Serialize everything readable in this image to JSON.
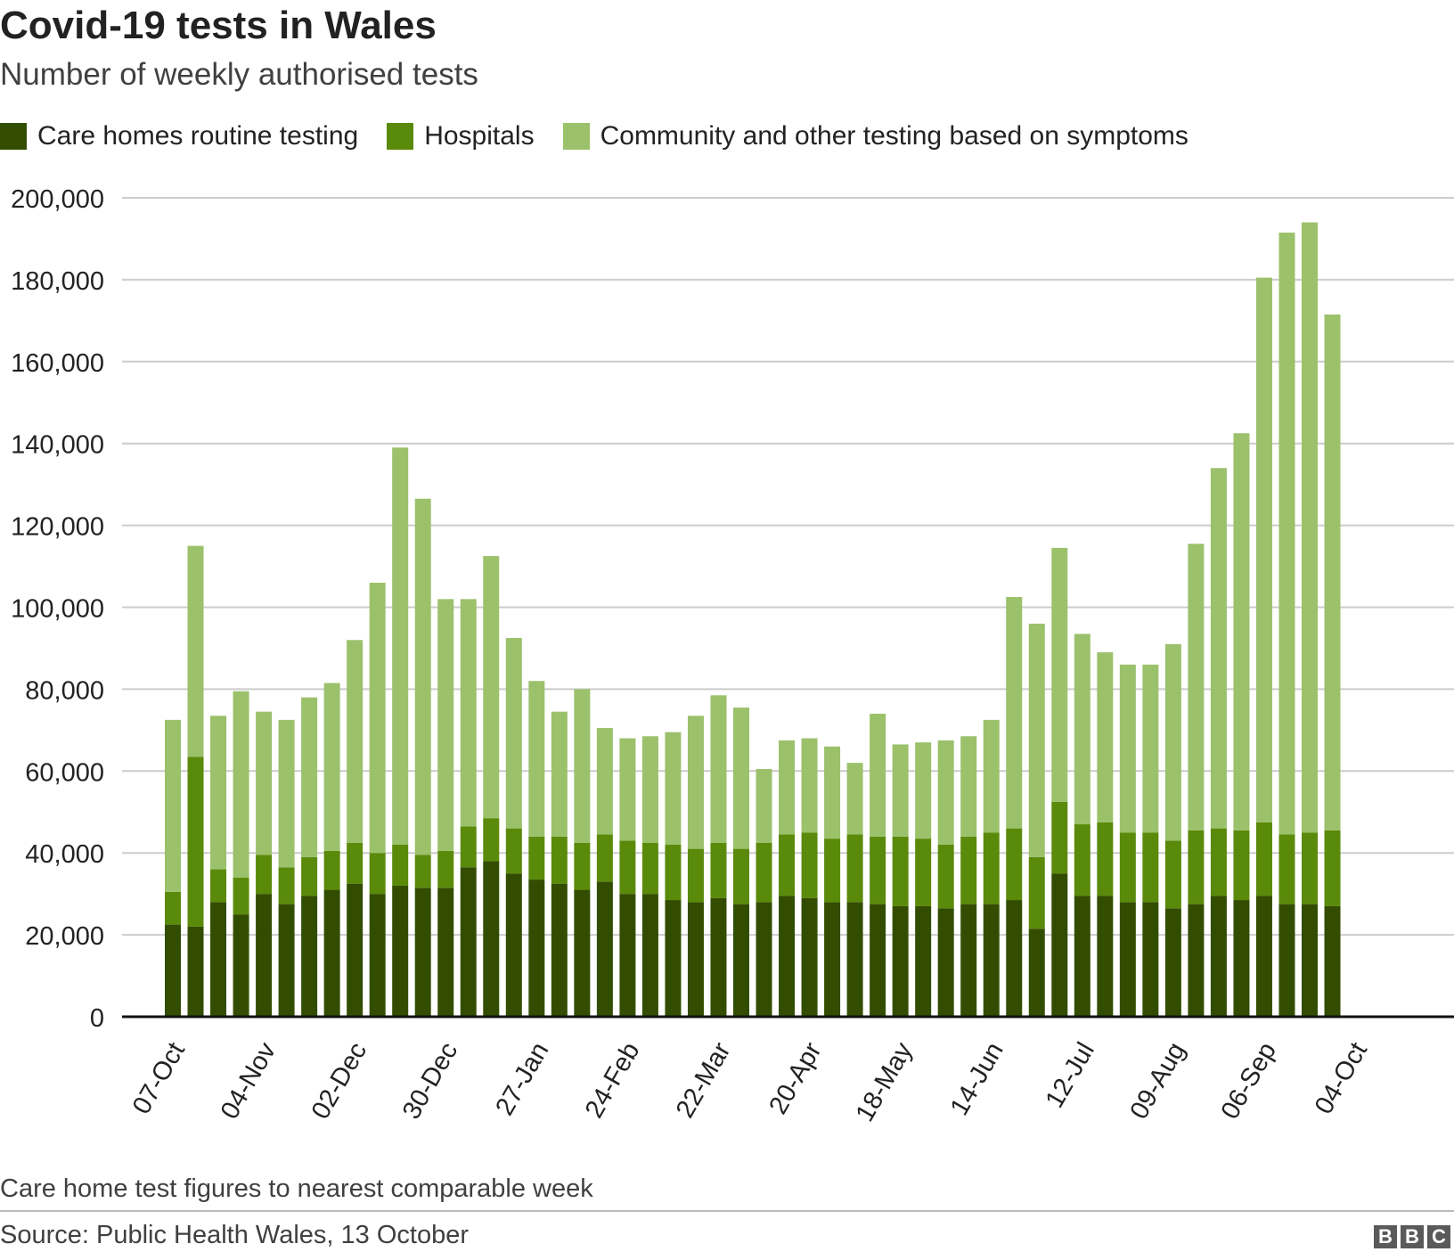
{
  "header": {
    "title": "Covid-19 tests in Wales",
    "subtitle": "Number of weekly authorised tests"
  },
  "legend": [
    {
      "label": "Care homes routine testing",
      "color": "#334d00"
    },
    {
      "label": "Hospitals",
      "color": "#5a8a0a"
    },
    {
      "label": "Community and other testing based on symptoms",
      "color": "#9bc16b"
    }
  ],
  "footer": {
    "note": "Care home test figures to nearest comparable week",
    "source": "Source: Public Health Wales, 13 October",
    "logo_letters": [
      "B",
      "B",
      "C"
    ]
  },
  "chart_data": {
    "type": "bar",
    "stacked": true,
    "title": "Covid-19 tests in Wales",
    "subtitle": "Number of weekly authorised tests",
    "ylim": [
      0,
      200000
    ],
    "yticks": [
      0,
      20000,
      40000,
      60000,
      80000,
      100000,
      120000,
      140000,
      160000,
      180000,
      200000
    ],
    "ytick_labels": [
      "0",
      "20,000",
      "40,000",
      "60,000",
      "80,000",
      "100,000",
      "120,000",
      "140,000",
      "160,000",
      "180,000",
      "200,000"
    ],
    "grid": true,
    "xtick_labels": [
      {
        "index": 0,
        "label": "07-Oct"
      },
      {
        "index": 4,
        "label": "04-Nov"
      },
      {
        "index": 8,
        "label": "02-Dec"
      },
      {
        "index": 12,
        "label": "30-Dec"
      },
      {
        "index": 16,
        "label": "27-Jan"
      },
      {
        "index": 20,
        "label": "24-Feb"
      },
      {
        "index": 24,
        "label": "22-Mar"
      },
      {
        "index": 28,
        "label": "20-Apr"
      },
      {
        "index": 32,
        "label": "18-May"
      },
      {
        "index": 36,
        "label": "14-Jun"
      },
      {
        "index": 40,
        "label": "12-Jul"
      },
      {
        "index": 44,
        "label": "09-Aug"
      },
      {
        "index": 48,
        "label": "06-Sep"
      },
      {
        "index": 52,
        "label": "04-Oct"
      }
    ],
    "series": [
      {
        "name": "Care homes routine testing",
        "color": "#334d00",
        "values": [
          22500,
          22000,
          28000,
          25000,
          30000,
          27500,
          29500,
          31000,
          32500,
          30000,
          32000,
          31500,
          31500,
          36500,
          38000,
          35000,
          33500,
          32500,
          31000,
          33000,
          30000,
          30000,
          28500,
          28000,
          29000,
          27500,
          28000,
          29500,
          29000,
          28000,
          28000,
          27500,
          27000,
          27000,
          26500,
          27500,
          27500,
          28500,
          21500,
          35000,
          29500,
          29500,
          28000,
          28000,
          26500,
          27500,
          29500,
          28500,
          29500,
          27500,
          27500,
          27000
        ]
      },
      {
        "name": "Hospitals",
        "color": "#5a8a0a",
        "values": [
          8000,
          41500,
          8000,
          9000,
          9500,
          9000,
          9500,
          9500,
          10000,
          10000,
          10000,
          8000,
          9000,
          10000,
          10500,
          11000,
          10500,
          11500,
          11500,
          11500,
          13000,
          12500,
          13500,
          13000,
          13500,
          13500,
          14500,
          15000,
          16000,
          15500,
          16500,
          16500,
          17000,
          16500,
          15500,
          16500,
          17500,
          17500,
          17500,
          17500,
          17500,
          18000,
          17000,
          17000,
          16500,
          18000,
          16500,
          17000,
          18000,
          17000,
          17500,
          18500
        ]
      },
      {
        "name": "Community and other testing based on symptoms",
        "color": "#9bc16b",
        "values": [
          42000,
          51500,
          37500,
          45500,
          35000,
          36000,
          39000,
          41000,
          49500,
          66000,
          97000,
          87000,
          61500,
          55500,
          64000,
          46500,
          38000,
          30500,
          37500,
          26000,
          25000,
          26000,
          27500,
          32500,
          36000,
          34500,
          18000,
          23000,
          23000,
          22500,
          17500,
          30000,
          22500,
          23500,
          25500,
          24500,
          27500,
          56500,
          57000,
          62000,
          46500,
          41500,
          41000,
          41000,
          48000,
          70000,
          88000,
          97000,
          133000,
          147000,
          149000,
          126000
        ]
      }
    ]
  }
}
